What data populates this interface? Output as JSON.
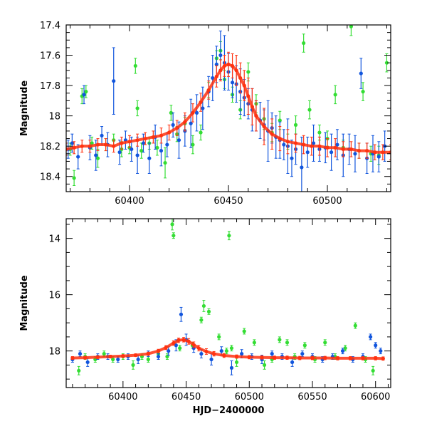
{
  "chart_data": [
    {
      "type": "scatter",
      "title": "",
      "xlabel": "",
      "ylabel": "Magnitude",
      "xlim": [
        60368,
        60532
      ],
      "ylim": [
        18.5,
        17.4
      ],
      "y_inverted": true,
      "xticks": [
        60400,
        60450,
        60500
      ],
      "yticks": [
        17.4,
        17.6,
        17.8,
        18,
        18.2,
        18.4
      ],
      "ytick_labels": [
        "17.4",
        "17.6",
        "17.8",
        "18",
        "18.2",
        "18.4"
      ],
      "grid": false,
      "legend": "none",
      "series": [
        {
          "color": "#33dd33",
          "x": [
            60370,
            60372,
            60376,
            60378,
            60381,
            60384,
            60388,
            60392,
            60396,
            60400,
            60403,
            60404,
            60406,
            60410,
            60414,
            60418,
            60421,
            60424,
            60428,
            60432,
            60436,
            60440,
            60444,
            60446,
            60448,
            60452,
            60456,
            60460,
            60464,
            60468,
            60472,
            60476,
            60480,
            60484,
            60488,
            60491,
            60496,
            60500,
            60504,
            60508,
            60512,
            60516,
            60518,
            60522,
            60526,
            60530
          ],
          "y": [
            18.22,
            18.41,
            17.87,
            17.84,
            18.18,
            18.28,
            18.19,
            18.16,
            18.22,
            18.21,
            17.67,
            17.95,
            18.23,
            18.18,
            18.21,
            18.31,
            17.98,
            18.12,
            18.05,
            18.19,
            18.11,
            17.83,
            17.62,
            17.57,
            17.76,
            17.86,
            17.96,
            17.71,
            17.92,
            18.02,
            18.11,
            18.03,
            18.17,
            18.06,
            17.52,
            17.96,
            18.11,
            18.15,
            17.86,
            18.21,
            17.41,
            18.23,
            17.84,
            18.25,
            18.26,
            17.65
          ],
          "err": [
            0.04,
            0.05,
            0.05,
            0.04,
            0.04,
            0.06,
            0.04,
            0.04,
            0.05,
            0.04,
            0.05,
            0.05,
            0.05,
            0.04,
            0.05,
            0.1,
            0.05,
            0.05,
            0.04,
            0.06,
            0.05,
            0.05,
            0.05,
            0.06,
            0.06,
            0.05,
            0.06,
            0.06,
            0.06,
            0.07,
            0.06,
            0.06,
            0.05,
            0.06,
            0.06,
            0.06,
            0.05,
            0.05,
            0.06,
            0.05,
            0.06,
            0.05,
            0.06,
            0.05,
            0.06,
            0.06
          ]
        },
        {
          "color": "#1155dd",
          "x": [
            60369,
            60371,
            60374,
            60377,
            60380,
            60383,
            60386,
            60389,
            60392,
            60395,
            60398,
            60401,
            60404,
            60407,
            60410,
            60413,
            60416,
            60419,
            60422,
            60425,
            60428,
            60431,
            60434,
            60437,
            60440,
            60442,
            60444,
            60446,
            60448,
            60450,
            60452,
            60454,
            60456,
            60458,
            60460,
            60462,
            60464,
            60466,
            60468,
            60470,
            60472,
            60474,
            60476,
            60478,
            60480,
            60482,
            60484,
            60487,
            60490,
            60493,
            60496,
            60499,
            60502,
            60505,
            60508,
            60511,
            60514,
            60517,
            60520,
            60523,
            60526,
            60529
          ],
          "y": [
            18.22,
            18.18,
            18.27,
            17.86,
            18.21,
            18.26,
            18.13,
            18.19,
            17.77,
            18.24,
            18.16,
            18.22,
            18.26,
            18.18,
            18.28,
            18.14,
            18.23,
            18.19,
            18.06,
            18.16,
            18.1,
            18.05,
            17.98,
            17.95,
            17.84,
            17.75,
            17.66,
            17.6,
            17.65,
            17.71,
            17.78,
            17.79,
            17.84,
            17.88,
            17.92,
            17.96,
            18.0,
            18.03,
            18.06,
            18.1,
            18.08,
            18.14,
            18.16,
            18.19,
            18.2,
            18.28,
            18.22,
            18.34,
            18.24,
            18.18,
            18.22,
            18.21,
            18.24,
            18.19,
            18.26,
            18.22,
            18.25,
            17.72,
            18.28,
            18.25,
            18.27,
            18.2
          ],
          "err": [
            0.06,
            0.06,
            0.08,
            0.06,
            0.08,
            0.1,
            0.06,
            0.08,
            0.22,
            0.08,
            0.06,
            0.08,
            0.12,
            0.06,
            0.1,
            0.08,
            0.1,
            0.08,
            0.08,
            0.12,
            0.1,
            0.16,
            0.12,
            0.14,
            0.1,
            0.15,
            0.12,
            0.16,
            0.18,
            0.12,
            0.1,
            0.12,
            0.15,
            0.12,
            0.1,
            0.14,
            0.1,
            0.12,
            0.1,
            0.2,
            0.1,
            0.14,
            0.12,
            0.1,
            0.18,
            0.12,
            0.1,
            0.2,
            0.1,
            0.12,
            0.08,
            0.1,
            0.12,
            0.1,
            0.14,
            0.1,
            0.12,
            0.1,
            0.1,
            0.12,
            0.1,
            0.1
          ]
        },
        {
          "color": "#ff3311",
          "trend": true,
          "x": [
            60368,
            60372,
            60376,
            60380,
            60384,
            60388,
            60392,
            60396,
            60400,
            60404,
            60408,
            60412,
            60416,
            60420,
            60424,
            60428,
            60432,
            60436,
            60440,
            60444,
            60446,
            60448,
            60450,
            60452,
            60454,
            60456,
            60458,
            60460,
            60462,
            60464,
            60468,
            60472,
            60476,
            60480,
            60484,
            60488,
            60492,
            60496,
            60500,
            60504,
            60508,
            60512,
            60516,
            60520,
            60524,
            60528,
            60532
          ],
          "y": [
            18.22,
            18.21,
            18.2,
            18.2,
            18.19,
            18.19,
            18.2,
            18.18,
            18.17,
            18.16,
            18.15,
            18.14,
            18.13,
            18.11,
            18.08,
            18.04,
            17.98,
            17.91,
            17.83,
            17.74,
            17.7,
            17.67,
            17.66,
            17.67,
            17.7,
            17.75,
            17.8,
            17.87,
            17.94,
            18.0,
            18.07,
            18.12,
            18.15,
            18.17,
            18.18,
            18.19,
            18.2,
            18.2,
            18.21,
            18.21,
            18.22,
            18.22,
            18.23,
            18.23,
            18.24,
            18.24,
            18.24
          ],
          "err": [
            0.04,
            0.04,
            0.04,
            0.04,
            0.04,
            0.04,
            0.04,
            0.04,
            0.04,
            0.04,
            0.04,
            0.04,
            0.05,
            0.05,
            0.05,
            0.06,
            0.06,
            0.06,
            0.06,
            0.07,
            0.07,
            0.07,
            0.08,
            0.08,
            0.1,
            0.1,
            0.1,
            0.12,
            0.12,
            0.1,
            0.12,
            0.1,
            0.08,
            0.08,
            0.06,
            0.06,
            0.06,
            0.06,
            0.06,
            0.06,
            0.05,
            0.05,
            0.05,
            0.05,
            0.05,
            0.05,
            0.05
          ]
        }
      ]
    },
    {
      "type": "scatter",
      "title": "",
      "xlabel": "HJD−2400000",
      "ylabel": "Magnitude",
      "xlim": [
        60355,
        60612
      ],
      "ylim": [
        19.3,
        13.3
      ],
      "y_inverted": true,
      "xticks": [
        60400,
        60450,
        60500,
        60550,
        60600
      ],
      "yticks": [
        14,
        16,
        18
      ],
      "ytick_labels": [
        "14",
        "16",
        "18"
      ],
      "grid": false,
      "legend": "none",
      "series": [
        {
          "color": "#33dd33",
          "x": [
            60365,
            60370,
            60378,
            60385,
            60392,
            60400,
            60408,
            60415,
            60420,
            60428,
            60435,
            60439,
            60440,
            60445,
            60455,
            60462,
            60464,
            60468,
            60476,
            60482,
            60484,
            60486,
            60490,
            60496,
            60504,
            60512,
            60518,
            60524,
            60530,
            60536,
            60544,
            60552,
            60560,
            60568,
            60576,
            60584,
            60592,
            60598
          ],
          "y": [
            18.7,
            18.2,
            18.3,
            18.1,
            18.3,
            18.2,
            18.5,
            18.2,
            18.3,
            18.1,
            18.2,
            13.5,
            13.9,
            17.9,
            17.8,
            16.9,
            16.4,
            16.6,
            17.5,
            18.0,
            13.9,
            17.9,
            18.4,
            17.3,
            17.7,
            18.5,
            18.3,
            17.6,
            17.7,
            18.2,
            17.8,
            18.3,
            17.7,
            18.2,
            17.9,
            17.1,
            18.3,
            18.7
          ],
          "err": [
            0.15,
            0.1,
            0.1,
            0.1,
            0.1,
            0.1,
            0.15,
            0.1,
            0.1,
            0.1,
            0.1,
            0.2,
            0.1,
            0.1,
            0.1,
            0.1,
            0.2,
            0.1,
            0.1,
            0.1,
            0.15,
            0.1,
            0.15,
            0.1,
            0.1,
            0.15,
            0.1,
            0.1,
            0.1,
            0.1,
            0.1,
            0.1,
            0.1,
            0.1,
            0.1,
            0.1,
            0.1,
            0.15
          ]
        },
        {
          "color": "#1155dd",
          "x": [
            60360,
            60366,
            60372,
            60380,
            60388,
            60396,
            60404,
            60412,
            60420,
            60428,
            60436,
            60442,
            60446,
            60450,
            60456,
            60462,
            60470,
            60478,
            60486,
            60494,
            60502,
            60510,
            60518,
            60526,
            60534,
            60542,
            60550,
            60558,
            60566,
            60574,
            60582,
            60590,
            60596,
            60600,
            60604
          ],
          "y": [
            18.3,
            18.1,
            18.4,
            18.2,
            18.2,
            18.3,
            18.2,
            18.3,
            18.1,
            18.2,
            18.0,
            17.8,
            16.7,
            17.6,
            17.9,
            18.1,
            18.3,
            18.0,
            18.6,
            18.1,
            18.2,
            18.3,
            18.1,
            18.2,
            18.4,
            18.1,
            18.2,
            18.3,
            18.2,
            18.0,
            18.3,
            18.2,
            17.5,
            17.8,
            18.0
          ],
          "err": [
            0.1,
            0.1,
            0.15,
            0.1,
            0.1,
            0.1,
            0.1,
            0.15,
            0.1,
            0.1,
            0.15,
            0.2,
            0.25,
            0.2,
            0.15,
            0.15,
            0.2,
            0.15,
            0.25,
            0.15,
            0.1,
            0.15,
            0.1,
            0.1,
            0.15,
            0.1,
            0.1,
            0.1,
            0.1,
            0.1,
            0.1,
            0.1,
            0.1,
            0.1,
            0.1
          ]
        },
        {
          "color": "#ff3311",
          "trend": true,
          "x": [
            60360,
            60370,
            60380,
            60390,
            60400,
            60410,
            60420,
            60428,
            60434,
            60440,
            60444,
            60448,
            60452,
            60456,
            60460,
            60466,
            60472,
            60480,
            60490,
            60500,
            60510,
            60520,
            60530,
            60540,
            60550,
            60560,
            60570,
            60580,
            60590,
            60600,
            60606
          ],
          "y": [
            18.25,
            18.24,
            18.22,
            18.2,
            18.18,
            18.15,
            18.1,
            18.0,
            17.88,
            17.72,
            17.62,
            17.6,
            17.66,
            17.78,
            17.9,
            18.02,
            18.1,
            18.16,
            18.2,
            18.22,
            18.23,
            18.24,
            18.24,
            18.25,
            18.25,
            18.25,
            18.26,
            18.26,
            18.26,
            18.26,
            18.27
          ],
          "err": [
            0.05,
            0.05,
            0.05,
            0.05,
            0.05,
            0.05,
            0.06,
            0.06,
            0.07,
            0.08,
            0.08,
            0.08,
            0.1,
            0.1,
            0.1,
            0.1,
            0.08,
            0.07,
            0.06,
            0.06,
            0.06,
            0.06,
            0.06,
            0.06,
            0.06,
            0.06,
            0.06,
            0.06,
            0.06,
            0.06,
            0.06
          ]
        }
      ]
    }
  ]
}
